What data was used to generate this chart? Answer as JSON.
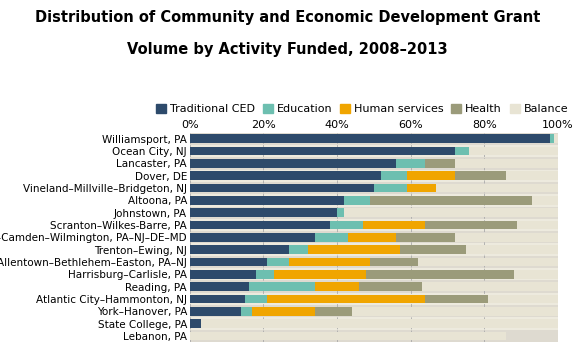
{
  "title_line1": "Distribution of Community and Economic Development Grant",
  "title_line2": "Volume by Activity Funded, 2008–2013",
  "categories": [
    "Williamsport, PA",
    "Ocean City, NJ",
    "Lancaster, PA",
    "Dover, DE",
    "Vineland–Millville–Bridgeton, NJ",
    "Altoona, PA",
    "Johnstown, PA",
    "Scranton–Wilkes-Barre, PA",
    "Philadelphia–Camden–Wilmington, PA–NJ–DE–MD",
    "Trenton–Ewing, NJ",
    "Allentown–Bethlehem–Easton, PA–NJ",
    "Harrisburg–Carlisle, PA",
    "Reading, PA",
    "Atlantic City–Hammonton, NJ",
    "York–Hanover, PA",
    "State College, PA",
    "Lebanon, PA"
  ],
  "series": {
    "Traditional CED": [
      98,
      72,
      56,
      52,
      50,
      42,
      40,
      38,
      34,
      27,
      21,
      18,
      16,
      15,
      14,
      3,
      0
    ],
    "Education": [
      1,
      4,
      8,
      7,
      9,
      7,
      2,
      9,
      9,
      5,
      6,
      5,
      18,
      6,
      3,
      0,
      0
    ],
    "Human services": [
      0,
      0,
      0,
      13,
      8,
      0,
      0,
      17,
      13,
      25,
      22,
      25,
      12,
      43,
      17,
      0,
      0
    ],
    "Health": [
      0,
      0,
      8,
      14,
      0,
      44,
      0,
      25,
      16,
      18,
      13,
      40,
      17,
      17,
      10,
      0,
      0
    ],
    "Balance": [
      1,
      24,
      28,
      14,
      33,
      7,
      58,
      11,
      28,
      25,
      38,
      12,
      37,
      19,
      56,
      97,
      86
    ]
  },
  "colors": {
    "Traditional CED": "#2d4a6b",
    "Education": "#6dbfb0",
    "Human services": "#f0a500",
    "Health": "#9b9b7a",
    "Balance": "#e8e4d4"
  },
  "row_colors": [
    "#dedad0",
    "#edeade"
  ],
  "legend_order": [
    "Traditional CED",
    "Education",
    "Human services",
    "Health",
    "Balance"
  ],
  "xticks": [
    0,
    20,
    40,
    60,
    80,
    100
  ],
  "xticklabels": [
    "0%",
    "20%",
    "40%",
    "60%",
    "80%",
    "100%"
  ],
  "title_fontsize": 10.5,
  "legend_fontsize": 8,
  "ytick_fontsize": 7.5,
  "xtick_fontsize": 8
}
